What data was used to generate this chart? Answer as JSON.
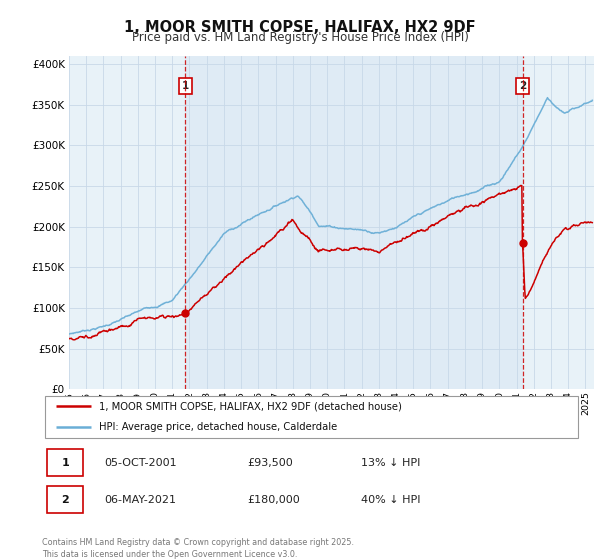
{
  "title": "1, MOOR SMITH COPSE, HALIFAX, HX2 9DF",
  "subtitle": "Price paid vs. HM Land Registry's House Price Index (HPI)",
  "legend_line1": "1, MOOR SMITH COPSE, HALIFAX, HX2 9DF (detached house)",
  "legend_line2": "HPI: Average price, detached house, Calderdale",
  "annotation_footer": "Contains HM Land Registry data © Crown copyright and database right 2025.\nThis data is licensed under the Open Government Licence v3.0.",
  "marker1_date": "05-OCT-2001",
  "marker1_price": "£93,500",
  "marker1_hpi": "13% ↓ HPI",
  "marker1_year": 2001.76,
  "marker1_value": 93500,
  "marker2_date": "06-MAY-2021",
  "marker2_price": "£180,000",
  "marker2_hpi": "40% ↓ HPI",
  "marker2_year": 2021.35,
  "marker2_value": 180000,
  "red_color": "#cc0000",
  "blue_color": "#6aaed6",
  "shade_color": "#ddeeff",
  "vline_color": "#cc0000",
  "background_color": "#f0f6fc",
  "plot_bg_color": "#e8f2f8",
  "grid_color": "#c8d8e8",
  "ylim": [
    0,
    410000
  ],
  "xlim": [
    1995,
    2025.5
  ],
  "yticks": [
    0,
    50000,
    100000,
    150000,
    200000,
    250000,
    300000,
    350000,
    400000
  ],
  "ytick_labels": [
    "£0",
    "£50K",
    "£100K",
    "£150K",
    "£200K",
    "£250K",
    "£300K",
    "£350K",
    "£400K"
  ],
  "xticks": [
    1995,
    1996,
    1997,
    1998,
    1999,
    2000,
    2001,
    2002,
    2003,
    2004,
    2005,
    2006,
    2007,
    2008,
    2009,
    2010,
    2011,
    2012,
    2013,
    2014,
    2015,
    2016,
    2017,
    2018,
    2019,
    2020,
    2021,
    2022,
    2023,
    2024,
    2025
  ]
}
